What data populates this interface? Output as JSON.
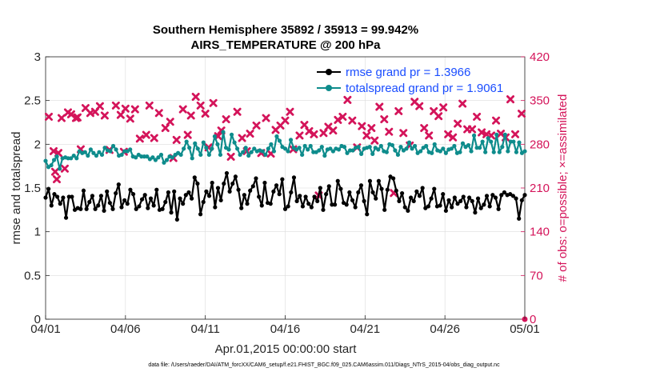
{
  "chart_data": {
    "type": "line",
    "title": "Southern Hemisphere 35892 / 35913 = 99.942%",
    "subtitle": "AIRS_TEMPERATURE @ 200 hPa",
    "xlabel": "Apr.01,2015 00:00:00 start",
    "ylabel_left": "rmse and totalspread",
    "ylabel_right": "# of obs: o=possible; ×=assimilated",
    "footer": "data file: /Users/raeder/DAI/ATM_forcXX/CAM6_setup/f.e21.FHIST_BGC.f09_025.CAM6assim.011/Diags_NTrS_2015-04/obs_diag_output.nc",
    "xlim": [
      0,
      30
    ],
    "ylim_left": [
      0,
      3
    ],
    "ylim_right": [
      0,
      420
    ],
    "x_tick_values": [
      0,
      5,
      10,
      15,
      20,
      25,
      30
    ],
    "x_tick_labels": [
      "04/01",
      "04/06",
      "04/11",
      "04/16",
      "04/21",
      "04/26",
      "05/01"
    ],
    "y_tick_labels_left": [
      "0",
      "0.5",
      "1",
      "1.5",
      "2",
      "2.5",
      "3"
    ],
    "y_tick_labels_right": [
      "0",
      "70",
      "140",
      "210",
      "280",
      "350",
      "420"
    ],
    "legend": {
      "rmse_label": "rmse grand pr = 1.3966",
      "spread_label": "totalspread grand pr = 1.9061",
      "location": "top-right"
    },
    "colors": {
      "rmse": "#000000",
      "spread": "#0e8c8c",
      "obs": "#d4145a",
      "legend_text": "#1a4dff"
    },
    "rmse": [
      1.39,
      1.49,
      1.3,
      1.43,
      1.4,
      1.32,
      1.39,
      1.16,
      1.4,
      1.4,
      1.25,
      1.27,
      1.26,
      1.47,
      1.26,
      1.34,
      1.41,
      1.26,
      1.3,
      1.41,
      1.24,
      1.46,
      1.33,
      1.26,
      1.44,
      1.54,
      1.28,
      1.36,
      1.32,
      1.48,
      1.43,
      1.26,
      1.29,
      1.37,
      1.42,
      1.27,
      1.38,
      1.3,
      1.48,
      1.25,
      1.26,
      1.34,
      1.45,
      1.22,
      1.46,
      1.14,
      1.38,
      1.32,
      1.42,
      1.45,
      1.38,
      1.62,
      1.55,
      1.2,
      1.34,
      1.46,
      1.41,
      1.56,
      1.28,
      1.5,
      1.36,
      1.55,
      1.67,
      1.46,
      1.55,
      1.63,
      1.48,
      1.27,
      1.42,
      1.32,
      1.47,
      1.52,
      1.61,
      1.4,
      1.3,
      1.56,
      1.33,
      1.32,
      1.46,
      1.53,
      1.43,
      1.6,
      1.26,
      1.29,
      1.45,
      1.62,
      1.35,
      1.41,
      1.29,
      1.4,
      1.32,
      1.28,
      1.4,
      1.35,
      1.5,
      1.25,
      1.43,
      1.52,
      1.31,
      1.31,
      1.58,
      1.49,
      1.33,
      1.31,
      1.45,
      1.36,
      1.28,
      1.45,
      1.53,
      1.35,
      1.2,
      1.58,
      1.45,
      1.38,
      1.58,
      1.49,
      1.25,
      1.48,
      1.63,
      1.61,
      1.47,
      1.35,
      1.44,
      1.28,
      1.24,
      1.39,
      1.35,
      1.46,
      1.41,
      1.5,
      1.27,
      1.29,
      1.38,
      1.49,
      1.29,
      1.3,
      1.43,
      1.24,
      1.36,
      1.28,
      1.39,
      1.32,
      1.35,
      1.4,
      1.28,
      1.39,
      1.35,
      1.22,
      1.38,
      1.27,
      1.31,
      1.41,
      1.29,
      1.42,
      1.39,
      1.26,
      1.42,
      1.45,
      1.42,
      1.43,
      1.41,
      1.38,
      1.15,
      1.36,
      1.42
    ],
    "spread": [
      1.81,
      1.74,
      1.76,
      1.82,
      1.86,
      1.72,
      1.84,
      1.85,
      1.84,
      1.84,
      1.87,
      1.84,
      1.92,
      1.9,
      1.91,
      1.87,
      1.94,
      1.9,
      1.87,
      1.91,
      1.88,
      1.96,
      1.93,
      1.92,
      1.98,
      1.94,
      1.87,
      1.88,
      1.92,
      1.92,
      1.94,
      1.86,
      1.85,
      1.88,
      1.86,
      1.86,
      1.86,
      1.83,
      1.85,
      1.82,
      1.85,
      1.88,
      1.79,
      1.82,
      1.86,
      1.85,
      1.88,
      1.9,
      1.88,
      1.95,
      2.03,
      1.96,
      1.84,
      2.01,
      1.95,
      1.88,
      2.02,
      1.96,
      1.88,
      1.95,
      2.09,
      2.0,
      1.88,
      2.14,
      1.96,
      1.94,
      2.11,
      2.02,
      1.95,
      1.88,
      1.91,
      1.96,
      1.87,
      1.91,
      1.95,
      1.92,
      1.93,
      1.92,
      1.88,
      1.95,
      2.0,
      1.92,
      2.09,
      2.04,
      1.97,
      1.95,
      1.92,
      2.05,
      1.96,
      1.94,
      1.96,
      1.88,
      1.98,
      1.94,
      1.98,
      1.91,
      1.91,
      1.93,
      1.97,
      1.87,
      1.94,
      1.95,
      1.92,
      1.95,
      1.94,
      1.98,
      1.97,
      1.9,
      1.93,
      1.93,
      1.96,
      1.97,
      1.89,
      1.95,
      1.96,
      1.97,
      1.89,
      1.96,
      1.94,
      1.98,
      1.92,
      1.91,
      2.0,
      1.99,
      1.93,
      1.88,
      1.97,
      1.93,
      1.95,
      2.02,
      1.95,
      1.98,
      1.9,
      1.92,
      1.96,
      1.98,
      1.91,
      1.9,
      2.0,
      1.93,
      1.92,
      1.95,
      1.9,
      1.94,
      1.95,
      1.98,
      1.9,
      1.91,
      2.01,
      1.97,
      1.99,
      1.92,
      2.1,
      1.96,
      1.96,
      2.03,
      1.91,
      2.07,
      2.03,
      1.91,
      2.11,
      1.91,
      1.97,
      2.11,
      1.92,
      2.03,
      2.03,
      1.91,
      2.02,
      1.9,
      1.92
    ],
    "assimilated_x": [
      0.2,
      0.5,
      0.6,
      0.7,
      0.8,
      1.0,
      1.2,
      1.4,
      1.6,
      1.9,
      2.0,
      2.2,
      2.5,
      2.8,
      3.1,
      3.4,
      3.7,
      4.0,
      4.4,
      4.7,
      4.9,
      5.0,
      5.3,
      5.6,
      5.9,
      6.3,
      6.5,
      6.8,
      7.1,
      7.5,
      7.8,
      8.0,
      8.2,
      8.6,
      8.9,
      9.1,
      9.4,
      9.7,
      10.0,
      10.2,
      10.5,
      10.8,
      11.0,
      11.3,
      11.6,
      12.0,
      12.3,
      12.6,
      12.8,
      13.2,
      13.5,
      13.8,
      14.1,
      14.4,
      14.7,
      15.0,
      15.3,
      15.5,
      15.9,
      16.2,
      16.5,
      16.8,
      17.1,
      17.4,
      17.7,
      18.0,
      18.3,
      18.6,
      18.9,
      19.2,
      19.5,
      19.8,
      20.1,
      20.4,
      20.6,
      20.9,
      21.2,
      21.5,
      21.8,
      22.1,
      22.4,
      22.8,
      23.1,
      23.4,
      23.7,
      24.0,
      24.3,
      24.6,
      24.9,
      25.2,
      25.5,
      25.8,
      26.1,
      26.4,
      26.7,
      27.0,
      27.3,
      27.6,
      27.9,
      28.2,
      28.5,
      28.8,
      29.1,
      29.4,
      29.8
    ],
    "assimilated_y": [
      324,
      269,
      236,
      224,
      266,
      322,
      241,
      331,
      328,
      322,
      323,
      272,
      338,
      330,
      332,
      341,
      326,
      271,
      342,
      327,
      268,
      337,
      321,
      336,
      289,
      295,
      342,
      290,
      330,
      306,
      316,
      258,
      287,
      336,
      295,
      326,
      356,
      342,
      329,
      275,
      346,
      293,
      302,
      320,
      260,
      332,
      290,
      269,
      297,
      310,
      266,
      322,
      265,
      303,
      310,
      318,
      332,
      272,
      294,
      311,
      301,
      296,
      198,
      298,
      308,
      302,
      319,
      324,
      351,
      318,
      275,
      309,
      294,
      306,
      286,
      340,
      320,
      300,
      202,
      333,
      298,
      278,
      348,
      341,
      306,
      294,
      333,
      325,
      339,
      296,
      291,
      313,
      345,
      304,
      304,
      324,
      299,
      296,
      294,
      318,
      297,
      291,
      352,
      296,
      329
    ]
  }
}
